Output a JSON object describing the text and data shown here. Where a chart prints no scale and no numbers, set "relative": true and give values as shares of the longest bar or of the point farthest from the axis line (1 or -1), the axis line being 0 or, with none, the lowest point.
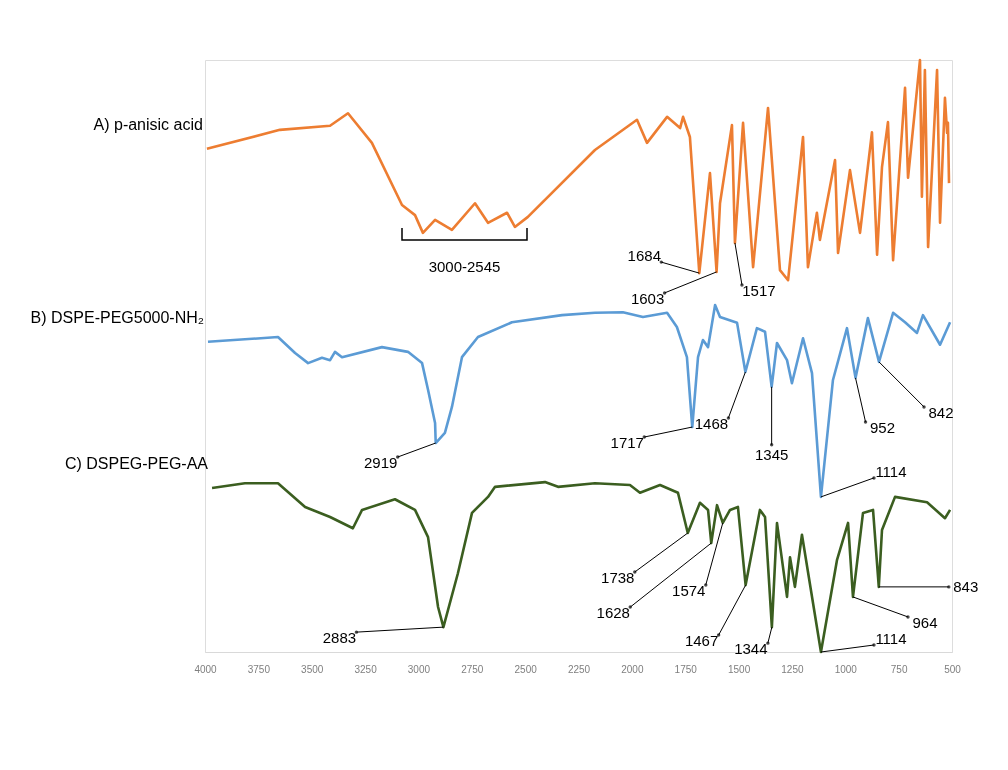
{
  "chart_data": {
    "type": "line",
    "relative": true,
    "xlim": [
      4000,
      500
    ],
    "xticks": [
      4000,
      3750,
      3500,
      3250,
      3000,
      2750,
      2500,
      2250,
      2000,
      1750,
      1500,
      1250,
      1000,
      750,
      500
    ],
    "series": [
      {
        "name": "A) p-anisic acid",
        "color": "#ed7d31",
        "x": [
          3991,
          3649,
          3414,
          3330,
          3218,
          3077,
          3016,
          2979,
          2922,
          2843,
          2735,
          2674,
          2585,
          2548,
          2487,
          2173,
          1976,
          1929,
          1835,
          1774,
          1760,
          1728,
          1684,
          1634,
          1603,
          1587,
          1531,
          1517,
          1479,
          1432,
          1362,
          1306,
          1268,
          1198,
          1175,
          1133,
          1119,
          1048,
          1034,
          978,
          931,
          875,
          851,
          828,
          800,
          776,
          720,
          706,
          650,
          641,
          627,
          612,
          570,
          556,
          533,
          523,
          519,
          514
        ],
        "values": [
          0.85,
          0.882,
          0.889,
          0.91,
          0.86,
          0.755,
          0.738,
          0.708,
          0.73,
          0.713,
          0.758,
          0.725,
          0.742,
          0.718,
          0.735,
          0.848,
          0.899,
          0.86,
          0.904,
          0.885,
          0.904,
          0.87,
          0.64,
          0.809,
          0.642,
          0.758,
          0.89,
          0.691,
          0.894,
          0.65,
          0.919,
          0.645,
          0.628,
          0.87,
          0.65,
          0.742,
          0.696,
          0.831,
          0.674,
          0.814,
          0.708,
          0.878,
          0.671,
          0.819,
          0.895,
          0.662,
          0.953,
          0.801,
          1.0,
          0.769,
          0.983,
          0.684,
          0.983,
          0.725,
          0.936,
          0.877,
          0.894,
          0.792
        ]
      },
      {
        "name": "B) DSPE-PEG5000-NH₂",
        "color": "#5b9bd5",
        "x": [
          3986,
          3658,
          3578,
          3517,
          3452,
          3414,
          3391,
          3358,
          3171,
          3049,
          2983,
          2955,
          2922,
          2919,
          2876,
          2843,
          2796,
          2721,
          2562,
          2327,
          2173,
          2042,
          1948,
          1835,
          1789,
          1742,
          1717,
          1690,
          1667,
          1643,
          1610,
          1587,
          1507,
          1468,
          1414,
          1376,
          1345,
          1320,
          1273,
          1250,
          1198,
          1156,
          1114,
          1058,
          992,
          952,
          894,
          842,
          776,
          720,
          664,
          636,
          556,
          509
        ],
        "values": [
          0.524,
          0.532,
          0.505,
          0.488,
          0.497,
          0.493,
          0.507,
          0.498,
          0.515,
          0.507,
          0.488,
          0.443,
          0.387,
          0.353,
          0.37,
          0.414,
          0.498,
          0.532,
          0.557,
          0.569,
          0.573,
          0.574,
          0.566,
          0.573,
          0.549,
          0.498,
          0.38,
          0.498,
          0.527,
          0.515,
          0.586,
          0.566,
          0.556,
          0.473,
          0.547,
          0.541,
          0.448,
          0.522,
          0.493,
          0.454,
          0.53,
          0.471,
          0.262,
          0.459,
          0.547,
          0.463,
          0.564,
          0.49,
          0.573,
          0.557,
          0.539,
          0.569,
          0.519,
          0.557
        ]
      },
      {
        "name": "C) DSPEG-PEG-AA",
        "color": "#3b5e20",
        "x": [
          3967,
          3813,
          3658,
          3531,
          3414,
          3307,
          3264,
          3110,
          3016,
          2955,
          2908,
          2883,
          2815,
          2749,
          2674,
          2641,
          2407,
          2346,
          2173,
          2009,
          1962,
          1868,
          1784,
          1738,
          1681,
          1643,
          1628,
          1601,
          1574,
          1540,
          1503,
          1467,
          1400,
          1376,
          1344,
          1320,
          1273,
          1259,
          1236,
          1203,
          1114,
          1039,
          987,
          964,
          917,
          870,
          843,
          828,
          767,
          617,
          533,
          509
        ],
        "values": [
          0.277,
          0.285,
          0.285,
          0.245,
          0.228,
          0.209,
          0.24,
          0.258,
          0.24,
          0.194,
          0.076,
          0.042,
          0.133,
          0.235,
          0.262,
          0.279,
          0.287,
          0.279,
          0.285,
          0.282,
          0.269,
          0.282,
          0.269,
          0.201,
          0.252,
          0.24,
          0.184,
          0.248,
          0.218,
          0.24,
          0.245,
          0.113,
          0.24,
          0.228,
          0.042,
          0.218,
          0.093,
          0.16,
          0.11,
          0.198,
          0.0,
          0.155,
          0.218,
          0.093,
          0.235,
          0.24,
          0.11,
          0.206,
          0.262,
          0.253,
          0.226,
          0.24
        ]
      }
    ],
    "annotations": [
      {
        "text": "1684",
        "x": 1684,
        "y": 0.64
      },
      {
        "text": "1603",
        "x": 1603,
        "y": 0.642
      },
      {
        "text": "1517",
        "x": 1517,
        "y": 0.691
      },
      "3000-2545",
      {
        "text": "2919",
        "x": 2919,
        "y": 0.353
      },
      {
        "text": "1717",
        "x": 1717,
        "y": 0.38
      },
      {
        "text": "1468",
        "x": 1468,
        "y": 0.473
      },
      {
        "text": "1345",
        "x": 1345,
        "y": 0.448
      },
      {
        "text": "952",
        "x": 952,
        "y": 0.463
      },
      {
        "text": "842",
        "x": 842,
        "y": 0.49
      },
      {
        "text": "1114",
        "x": 1114,
        "y": 0.262
      },
      {
        "text": "2883",
        "x": 2883,
        "y": 0.042
      },
      {
        "text": "1738",
        "x": 1738,
        "y": 0.201
      },
      {
        "text": "1628",
        "x": 1628,
        "y": 0.184
      },
      {
        "text": "1574",
        "x": 1574,
        "y": 0.218
      },
      {
        "text": "1467",
        "x": 1467,
        "y": 0.113
      },
      {
        "text": "1344",
        "x": 1344,
        "y": 0.042
      },
      {
        "text": "964",
        "x": 964,
        "y": 0.093
      },
      {
        "text": "843",
        "x": 843,
        "y": 0.11
      },
      {
        "text": "1114",
        "x": 1114,
        "y": 0.0
      }
    ]
  }
}
